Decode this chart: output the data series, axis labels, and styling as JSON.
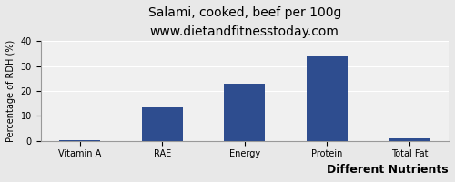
{
  "title": "Salami, cooked, beef per 100g",
  "subtitle": "www.dietandfitnesstoday.com",
  "xlabel": "Different Nutrients",
  "ylabel": "Percentage of RDH (%)",
  "categories": [
    "Vitamin A",
    "RAE",
    "Energy",
    "Protein",
    "Total Fat"
  ],
  "values": [
    0.2,
    13.3,
    23.0,
    34.0,
    1.1
  ],
  "bar_color": "#2E4D8F",
  "ylim": [
    0,
    40
  ],
  "yticks": [
    0,
    10,
    20,
    30,
    40
  ],
  "background_color": "#E8E8E8",
  "plot_background": "#F0F0F0",
  "title_fontsize": 10,
  "subtitle_fontsize": 8,
  "xlabel_fontsize": 9,
  "ylabel_fontsize": 7,
  "tick_fontsize": 7,
  "grid_color": "#FFFFFF"
}
